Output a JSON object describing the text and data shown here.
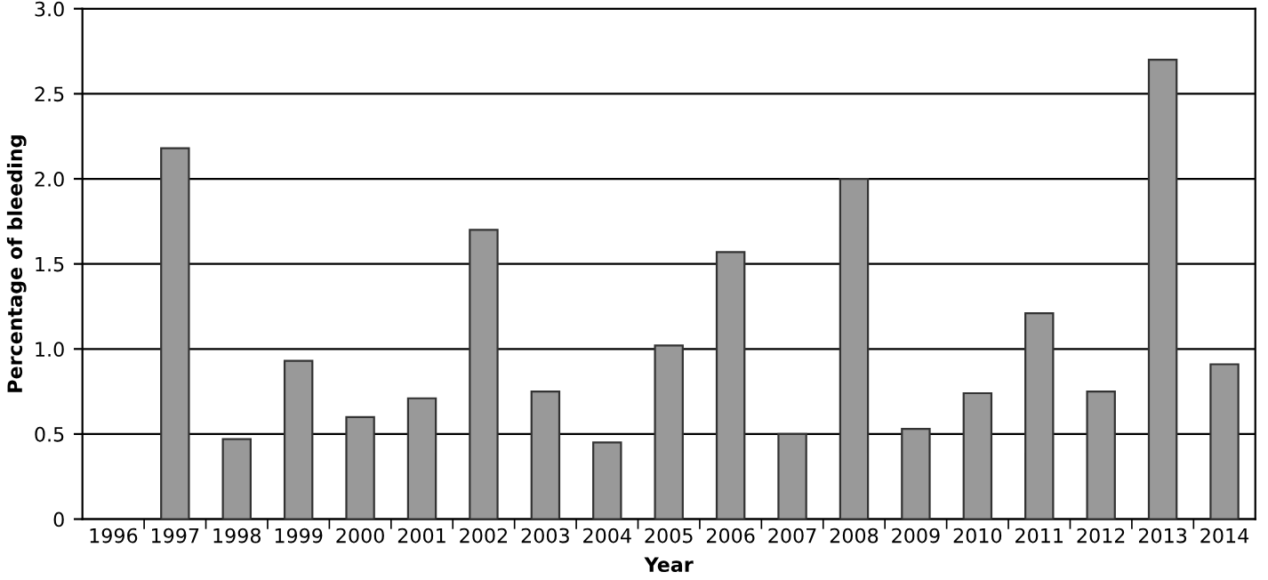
{
  "chart_data": {
    "type": "bar",
    "xlabel": "Year",
    "ylabel": "Percentage of bleeding",
    "categories": [
      "1996",
      "1997",
      "1998",
      "1999",
      "2000",
      "2001",
      "2002",
      "2003",
      "2004",
      "2005",
      "2006",
      "2007",
      "2008",
      "2009",
      "2010",
      "2011",
      "2012",
      "2013",
      "2014"
    ],
    "values": [
      null,
      2.18,
      0.47,
      0.93,
      0.6,
      0.71,
      1.7,
      0.75,
      0.45,
      1.02,
      1.57,
      0.5,
      2.0,
      0.53,
      0.74,
      1.21,
      0.75,
      2.7,
      0.91
    ],
    "color": "#999999",
    "ylim": [
      0,
      3.0
    ],
    "yticks": [
      {
        "value": 0,
        "label": "0"
      },
      {
        "value": 0.5,
        "label": "0.5"
      },
      {
        "value": 1.0,
        "label": "1.0"
      },
      {
        "value": 1.5,
        "label": "1.5"
      },
      {
        "value": 2.0,
        "label": "2.0"
      },
      {
        "value": 2.5,
        "label": "2.5"
      },
      {
        "value": 3.0,
        "label": "3.0"
      }
    ],
    "grid": "y",
    "legend": false
  }
}
